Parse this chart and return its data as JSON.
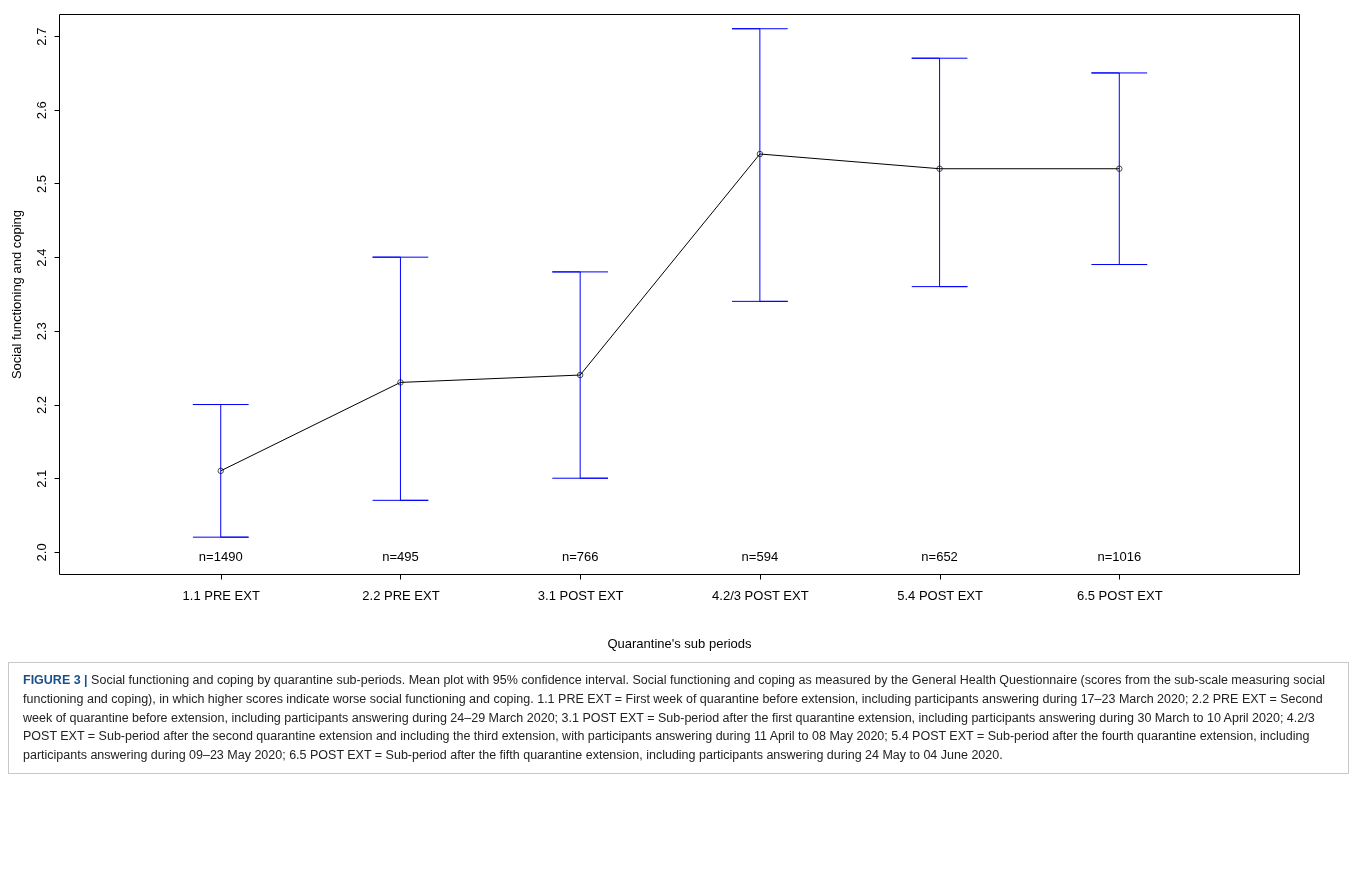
{
  "chart_data": {
    "type": "line",
    "xlabel": "Quarantine's sub periods",
    "ylabel": "Social functioning and coping",
    "categories": [
      "1.1 PRE EXT",
      "2.2 PRE EXT",
      "3.1 POST EXT",
      "4.2/3 POST EXT",
      "5.4 POST EXT",
      "6.5 POST EXT"
    ],
    "series": [
      {
        "color": "#000000",
        "values": [
          2.11,
          2.23,
          2.24,
          2.54,
          2.52,
          2.52
        ],
        "errors": [
          [
            2.02,
            2.2
          ],
          [
            2.07,
            2.4
          ],
          [
            2.1,
            2.38
          ],
          [
            2.34,
            2.71
          ],
          [
            2.36,
            2.67
          ],
          [
            2.39,
            2.65
          ]
        ]
      }
    ],
    "ylim": [
      1.97,
      2.73
    ],
    "yticks": [
      {
        "value": 2,
        "label": "2.0"
      },
      {
        "value": 2.1,
        "label": "2.1"
      },
      {
        "value": 2.2,
        "label": "2.2"
      },
      {
        "value": 2.3,
        "label": "2.3"
      },
      {
        "value": 2.4,
        "label": "2.4"
      },
      {
        "value": 2.5,
        "label": "2.5"
      },
      {
        "value": 2.6,
        "label": "2.6"
      },
      {
        "value": 2.7,
        "label": "2.7"
      }
    ],
    "grid": false,
    "marker": "circle",
    "line_style": "solid",
    "annotations": [
      "n=1490",
      "n=495",
      "n=766",
      "n=594",
      "n=652",
      "n=1016",
      "FIGURE 3 |",
      "Social functioning and coping by quarantine sub-periods. Mean plot with 95% confidence interval. Social functioning and coping as measured by the General Health Questionnaire (scores from the sub-scale measuring social functioning and coping), in which higher scores indicate worse social functioning and coping. 1.1 PRE EXT = First week of quarantine before extension, including participants answering during 17–23 March 2020; 2.2 PRE EXT = Second week of quarantine before extension, including participants answering during 24–29 March 2020; 3.1 POST EXT = Sub-period after the first quarantine extension, including participants answering during 30 March to 10 April 2020; 4.2/3 POST EXT = Sub-period after the second quarantine extension and including the third extension, with participants answering during 11 April to 08 May 2020; 5.4 POST EXT = Sub-period after the fourth quarantine extension, including participants answering during 09–23 May 2020; 6.5 POST EXT = Sub-period after the fifth quarantine extension, including participants answering during 24 May to 04 June 2020."
    ]
  }
}
